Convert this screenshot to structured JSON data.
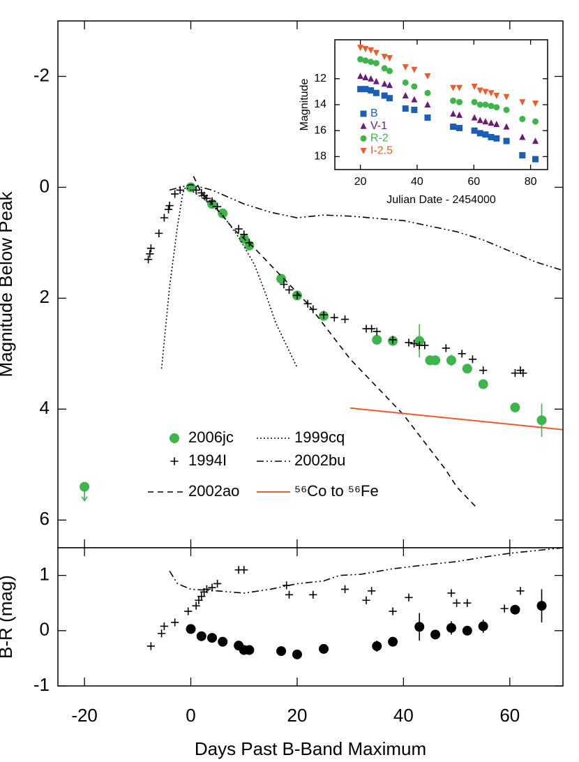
{
  "chart_data": [
    {
      "type": "scatter",
      "ylabel": "Magnitude Below Peak",
      "xlim": [
        -25,
        70
      ],
      "ylim": [
        -3,
        6.5
      ],
      "y_inverted": true,
      "xticks": [
        -20,
        0,
        20,
        40,
        60
      ],
      "yticks": [
        -2,
        0,
        2,
        4,
        6
      ],
      "legend": "lower left",
      "series": [
        {
          "name": "2006jc",
          "color": "#3db54a",
          "marker": "circle",
          "x": [
            0,
            4,
            6,
            10,
            11,
            17,
            20,
            25,
            35,
            38,
            43,
            45,
            46,
            49,
            52,
            55,
            61,
            66
          ],
          "values": [
            0,
            0.3,
            0.47,
            0.93,
            1.05,
            1.65,
            1.95,
            2.32,
            2.75,
            2.77,
            2.77,
            3.12,
            3.12,
            3.12,
            3.27,
            3.55,
            3.97,
            4.2
          ],
          "errors": [
            null,
            null,
            null,
            null,
            null,
            null,
            null,
            null,
            null,
            null,
            0.3,
            null,
            null,
            0.1,
            null,
            0.08,
            null,
            0.3
          ],
          "upper_limit": {
            "x": -20,
            "value": 5.4
          }
        },
        {
          "name": "1994I",
          "color": "#000000",
          "marker": "plus",
          "x": [
            -8,
            -7.7,
            -7.5,
            -6,
            -5,
            -4.2,
            -4,
            -3,
            -2,
            1,
            2,
            2.5,
            3,
            4,
            5,
            9,
            10,
            11,
            17.5,
            18.5,
            20,
            22,
            23,
            25,
            27,
            29,
            33,
            34,
            35,
            38,
            41,
            42,
            43,
            44,
            48,
            51,
            53,
            55,
            61,
            62,
            62.5
          ],
          "values": [
            1.3,
            1.2,
            1.1,
            0.83,
            0.55,
            0.4,
            0.33,
            0.12,
            0.05,
            0.05,
            0.1,
            0.15,
            0.2,
            0.25,
            0.35,
            0.75,
            0.85,
            1.0,
            1.75,
            1.85,
            1.95,
            2.1,
            2.2,
            2.3,
            2.35,
            2.38,
            2.55,
            2.55,
            2.6,
            2.75,
            2.8,
            2.82,
            2.85,
            2.85,
            2.9,
            3.0,
            3.1,
            3.3,
            3.35,
            3.3,
            3.35
          ]
        },
        {
          "name": "2002ao",
          "color": "#000000",
          "dash": "dashed",
          "x": [
            0.5,
            2,
            5,
            8,
            12,
            17,
            22,
            26,
            30,
            35,
            40,
            44,
            48,
            50,
            54
          ],
          "values": [
            -0.2,
            0.1,
            0.4,
            0.75,
            1.1,
            1.6,
            2.1,
            2.6,
            3.1,
            3.6,
            4.1,
            4.6,
            5.1,
            5.4,
            5.8
          ]
        },
        {
          "name": "1999cq",
          "color": "#000000",
          "dash": "dotted",
          "x": [
            -5.5,
            -4,
            -2.5,
            -1.5,
            -1,
            0,
            3,
            6,
            9,
            12,
            14,
            16,
            18,
            20
          ],
          "values": [
            3.27,
            1.8,
            0.7,
            0.1,
            0,
            0.05,
            0.25,
            0.5,
            0.9,
            1.4,
            1.9,
            2.45,
            2.85,
            3.25
          ]
        },
        {
          "name": "2002bu",
          "color": "#000000",
          "dash": "dashdotdot",
          "x": [
            -4,
            0,
            4,
            10,
            15,
            20,
            25,
            30,
            40,
            45,
            50,
            55,
            60,
            65,
            70
          ],
          "values": [
            0.05,
            -0.05,
            0.05,
            0.3,
            0.45,
            0.55,
            0.5,
            0.52,
            0.6,
            0.7,
            0.8,
            0.95,
            1.15,
            1.35,
            1.5
          ]
        },
        {
          "name": "⁵⁶Co to ⁵⁶Fe",
          "color": "#f05a28",
          "dash": "solid",
          "x": [
            30,
            70
          ],
          "values": [
            3.98,
            4.37
          ]
        }
      ]
    },
    {
      "type": "scatter",
      "xlabel": "Days Past B-Band Maximum",
      "ylabel": "B-R (mag)",
      "xlim": [
        -25,
        70
      ],
      "ylim": [
        -1,
        1.5
      ],
      "xticks": [
        -20,
        0,
        20,
        40,
        60
      ],
      "yticks": [
        -1,
        0,
        1
      ],
      "series": [
        {
          "color": "#000000",
          "marker": "circle",
          "x": [
            0,
            2,
            4,
            6,
            9,
            10,
            11,
            17,
            20,
            25,
            35,
            38,
            43,
            46,
            49,
            52,
            55,
            61,
            66
          ],
          "values": [
            0.03,
            -0.1,
            -0.13,
            -0.2,
            -0.27,
            -0.35,
            -0.35,
            -0.37,
            -0.43,
            -0.33,
            -0.28,
            -0.2,
            0.07,
            -0.07,
            0.05,
            0.0,
            0.08,
            0.38,
            0.45
          ],
          "errors": [
            null,
            null,
            null,
            null,
            null,
            null,
            null,
            null,
            null,
            null,
            0.1,
            null,
            0.25,
            null,
            0.12,
            null,
            0.12,
            null,
            0.3
          ]
        },
        {
          "color": "#000000",
          "marker": "plus",
          "x": [
            -7.5,
            -5.5,
            -5,
            -3,
            -0.5,
            1,
            1.5,
            2,
            2.5,
            3,
            4,
            5,
            9,
            10,
            18,
            18.5,
            23,
            29,
            33,
            34,
            38,
            41,
            49,
            50,
            52,
            59,
            62
          ],
          "values": [
            -0.28,
            -0.05,
            0.08,
            0.15,
            0.35,
            0.45,
            0.55,
            0.62,
            0.7,
            0.75,
            0.78,
            0.85,
            1.1,
            1.1,
            0.82,
            0.65,
            0.65,
            0.75,
            0.55,
            0.72,
            0.35,
            0.6,
            0.68,
            0.5,
            0.5,
            0.4,
            0.72
          ]
        },
        {
          "color": "#000000",
          "dash": "dashdotdot",
          "x": [
            -4,
            -2.5,
            0,
            5,
            10,
            15,
            20,
            25,
            28,
            32,
            38,
            45,
            50,
            55,
            60,
            65,
            70
          ],
          "values": [
            1.08,
            0.85,
            0.75,
            0.72,
            0.68,
            0.75,
            0.85,
            0.9,
            1.0,
            1.02,
            1.12,
            1.2,
            1.25,
            1.33,
            1.4,
            1.45,
            1.5
          ]
        }
      ]
    },
    {
      "type": "scatter",
      "xlabel": "Julian Date - 2454000",
      "ylabel": "Magnitude",
      "xlim": [
        11,
        86
      ],
      "ylim": [
        9,
        19
      ],
      "y_inverted": true,
      "xticks": [
        20,
        40,
        60,
        80
      ],
      "yticks": [
        12,
        14,
        16,
        18
      ],
      "legend": "left",
      "series": [
        {
          "name": "B",
          "color": "#1a5fb4",
          "marker": "square",
          "x": [
            20,
            21.8,
            23.7,
            25.6,
            28.5,
            30.3,
            35.9,
            39,
            43.7,
            52.7,
            54.9,
            60.2,
            62.2,
            64.1,
            66.1,
            68,
            71.5,
            77.1,
            81.7
          ],
          "values": [
            12.8,
            12.8,
            12.9,
            13.1,
            13.3,
            13.5,
            14.3,
            14.4,
            15.0,
            15.7,
            15.8,
            16.0,
            16.2,
            16.3,
            16.5,
            16.6,
            16.8,
            17.9,
            18.2
          ]
        },
        {
          "name": "V-1",
          "color": "#6a1b7a",
          "marker": "triangle",
          "x": [
            20,
            21.8,
            23.7,
            25.6,
            28.5,
            30.3,
            35.9,
            39,
            43.7,
            52.7,
            54.9,
            60.2,
            62.2,
            64.1,
            66.1,
            68,
            71.5,
            77.1,
            81.7
          ],
          "values": [
            11.8,
            11.9,
            12.0,
            12.2,
            12.4,
            12.5,
            13.3,
            13.6,
            14.0,
            14.7,
            14.8,
            15.0,
            15.2,
            15.3,
            15.4,
            15.5,
            15.7,
            16.5,
            16.8
          ]
        },
        {
          "name": "R-2",
          "color": "#3db54a",
          "marker": "circle",
          "x": [
            20,
            21.8,
            23.7,
            25.6,
            28.5,
            30.3,
            35.9,
            39,
            43.7,
            52.7,
            54.9,
            60.2,
            62.2,
            64.1,
            66.1,
            68,
            71.5,
            77.1,
            81.7
          ],
          "values": [
            10.5,
            10.6,
            10.7,
            10.8,
            11.2,
            11.4,
            12.3,
            12.6,
            13.1,
            13.7,
            13.8,
            13.8,
            14.0,
            14.0,
            14.1,
            14.2,
            14.4,
            15.1,
            15.3
          ]
        },
        {
          "name": "I-2.5",
          "color": "#f05a28",
          "marker": "triangle-down",
          "x": [
            20,
            21.8,
            23.7,
            25.6,
            28.5,
            30.3,
            35.9,
            39,
            43.7,
            52.7,
            54.9,
            60.2,
            62.2,
            64.1,
            66.1,
            68,
            71.5,
            77.1,
            81.7
          ],
          "values": [
            9.6,
            9.7,
            9.8,
            10.0,
            10.3,
            10.4,
            11.1,
            11.3,
            11.8,
            12.7,
            12.7,
            12.6,
            12.9,
            13.0,
            13.1,
            13.3,
            13.4,
            13.8,
            13.9
          ]
        }
      ]
    }
  ]
}
